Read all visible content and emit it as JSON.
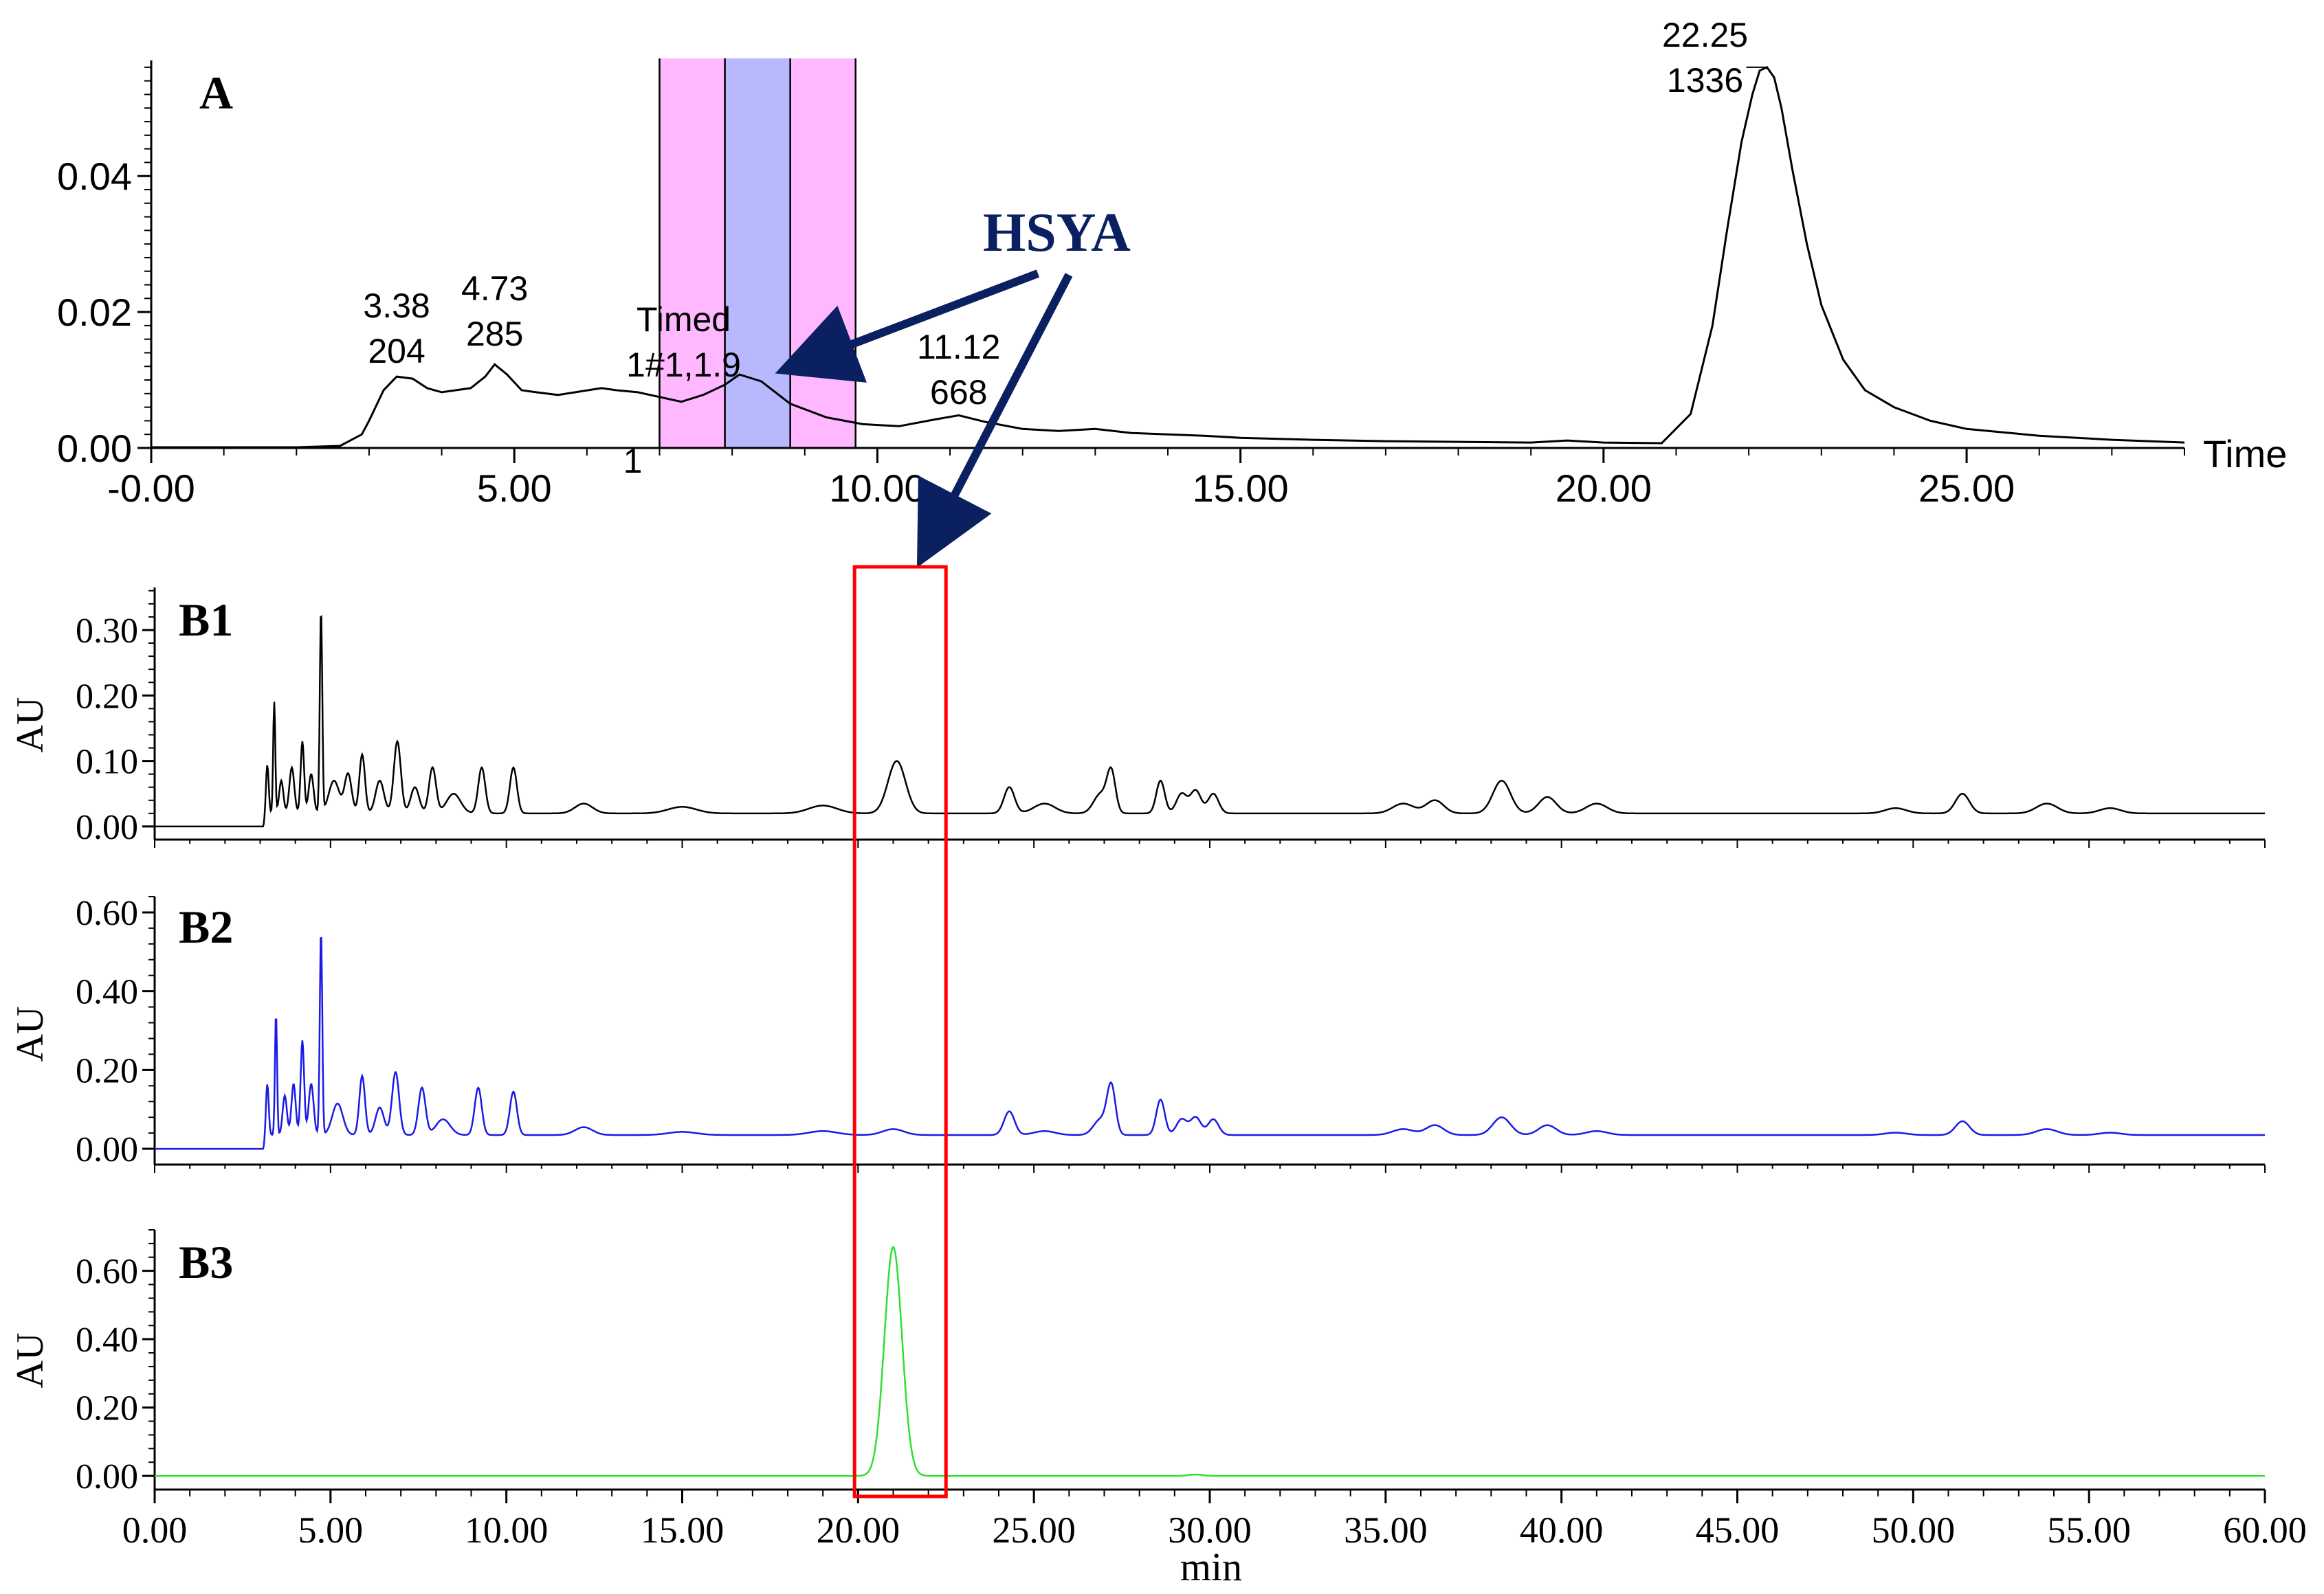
{
  "chart_data": [
    {
      "id": "A",
      "type": "line",
      "panel_label": "A",
      "xlabel": "Time",
      "x_ticks": [
        "-0.00",
        "5.00",
        "10.00",
        "15.00",
        "20.00",
        "25.00"
      ],
      "x_tick_values": [
        0,
        5,
        10,
        15,
        20,
        25
      ],
      "xlim": [
        0,
        28
      ],
      "y_ticks": [
        "0.00",
        "0.02",
        "0.04"
      ],
      "y_tick_values": [
        0,
        0.02,
        0.04
      ],
      "ylim": [
        0,
        0.057
      ],
      "grid": false,
      "shaded_regions": [
        {
          "x0": 7.0,
          "x1": 7.9,
          "color": "#ffb8ff"
        },
        {
          "x0": 7.9,
          "x1": 8.8,
          "color": "#b8b8ff"
        },
        {
          "x0": 8.8,
          "x1": 9.7,
          "color": "#ffb8ff"
        }
      ],
      "series": [
        {
          "color": "#000000",
          "x": [
            0,
            1,
            2,
            2.6,
            2.9,
            3.0,
            3.2,
            3.38,
            3.6,
            3.8,
            4.0,
            4.2,
            4.4,
            4.6,
            4.73,
            4.9,
            5.1,
            5.3,
            5.6,
            5.9,
            6.2,
            6.4,
            6.7,
            7.0,
            7.3,
            7.6,
            7.9,
            8.1,
            8.4,
            8.8,
            9.3,
            9.8,
            10.3,
            10.8,
            11.12,
            11.5,
            12.0,
            12.5,
            13.0,
            13.5,
            14.0,
            14.5,
            15.0,
            16.0,
            17.0,
            18.0,
            19.0,
            19.5,
            20.0,
            20.8,
            21.2,
            21.5,
            21.7,
            21.9,
            22.05,
            22.15,
            22.25,
            22.35,
            22.45,
            22.6,
            22.8,
            23.0,
            23.3,
            23.6,
            24.0,
            24.5,
            25.0,
            26.0,
            27.0,
            28.0
          ],
          "y": [
            0.0001,
            0.0001,
            0.0001,
            0.0003,
            0.002,
            0.004,
            0.0085,
            0.0105,
            0.0102,
            0.0088,
            0.0082,
            0.0085,
            0.0088,
            0.0105,
            0.0123,
            0.0108,
            0.0085,
            0.0082,
            0.0078,
            0.0083,
            0.0088,
            0.0085,
            0.0082,
            0.0075,
            0.0068,
            0.0078,
            0.0093,
            0.0108,
            0.0098,
            0.0065,
            0.0045,
            0.0035,
            0.0032,
            0.0042,
            0.0048,
            0.0038,
            0.0028,
            0.0025,
            0.0028,
            0.0022,
            0.002,
            0.0018,
            0.0015,
            0.0012,
            0.001,
            0.0009,
            0.0008,
            0.0011,
            0.0008,
            0.0007,
            0.005,
            0.018,
            0.032,
            0.045,
            0.052,
            0.0555,
            0.056,
            0.0545,
            0.05,
            0.041,
            0.03,
            0.021,
            0.013,
            0.0085,
            0.006,
            0.004,
            0.0028,
            0.0018,
            0.0012,
            0.0008
          ]
        }
      ],
      "annotations": [
        {
          "lines": [
            "3.38",
            "204"
          ],
          "x": 3.38
        },
        {
          "lines": [
            "4.73",
            "285"
          ],
          "x": 4.73
        },
        {
          "lines": [
            "Timed",
            "1#1,1.9",
            "1"
          ],
          "x": 7.9
        },
        {
          "lines": [
            "11.12",
            "668"
          ],
          "x": 11.12
        },
        {
          "lines": [
            "22.25",
            "1336"
          ],
          "x": 22.25
        }
      ],
      "callout": {
        "text": "HSYA",
        "color": "#0a2060"
      }
    },
    {
      "id": "B1",
      "type": "line",
      "panel_label": "B1",
      "ylabel": "AU",
      "y_ticks": [
        "0.00",
        "0.10",
        "0.20",
        "0.30"
      ],
      "y_tick_values": [
        0,
        0.1,
        0.2,
        0.3
      ],
      "ylim": [
        -0.02,
        0.365
      ],
      "xlim": [
        0,
        60
      ],
      "grid": false,
      "baseline": 0.02,
      "start": 3.1,
      "series": [
        {
          "color": "#000000",
          "peaks": [
            [
              3.2,
              0.08,
              0.04
            ],
            [
              3.4,
              0.17,
              0.03
            ],
            [
              3.6,
              0.05,
              0.06
            ],
            [
              3.9,
              0.07,
              0.07
            ],
            [
              4.2,
              0.11,
              0.05
            ],
            [
              4.45,
              0.06,
              0.07
            ],
            [
              4.73,
              0.31,
              0.035
            ],
            [
              5.1,
              0.05,
              0.15
            ],
            [
              5.5,
              0.06,
              0.1
            ],
            [
              5.9,
              0.09,
              0.08
            ],
            [
              6.4,
              0.05,
              0.12
            ],
            [
              6.9,
              0.11,
              0.1
            ],
            [
              7.4,
              0.04,
              0.12
            ],
            [
              7.9,
              0.07,
              0.1
            ],
            [
              8.5,
              0.03,
              0.2
            ],
            [
              9.3,
              0.07,
              0.1
            ],
            [
              10.2,
              0.07,
              0.1
            ],
            [
              12.2,
              0.015,
              0.25
            ],
            [
              15.0,
              0.01,
              0.4
            ],
            [
              19.0,
              0.012,
              0.4
            ],
            [
              21.1,
              0.08,
              0.25
            ],
            [
              24.3,
              0.04,
              0.15
            ],
            [
              25.3,
              0.015,
              0.3
            ],
            [
              26.9,
              0.03,
              0.2
            ],
            [
              27.2,
              0.06,
              0.12
            ],
            [
              28.6,
              0.05,
              0.12
            ],
            [
              29.2,
              0.03,
              0.15
            ],
            [
              29.6,
              0.035,
              0.15
            ],
            [
              30.1,
              0.03,
              0.15
            ],
            [
              35.5,
              0.015,
              0.3
            ],
            [
              36.4,
              0.02,
              0.25
            ],
            [
              38.3,
              0.05,
              0.25
            ],
            [
              39.6,
              0.025,
              0.25
            ],
            [
              41.0,
              0.015,
              0.3
            ],
            [
              49.5,
              0.008,
              0.3
            ],
            [
              51.4,
              0.03,
              0.2
            ],
            [
              53.8,
              0.015,
              0.3
            ],
            [
              55.6,
              0.008,
              0.3
            ]
          ]
        }
      ]
    },
    {
      "id": "B2",
      "type": "line",
      "panel_label": "B2",
      "ylabel": "AU",
      "y_ticks": [
        "0.00",
        "0.20",
        "0.40",
        "0.60"
      ],
      "y_tick_values": [
        0,
        0.2,
        0.4,
        0.6
      ],
      "ylim": [
        -0.04,
        0.64
      ],
      "xlim": [
        0,
        60
      ],
      "grid": false,
      "baseline": 0.035,
      "start": 3.1,
      "series": [
        {
          "color": "#1a1ae6",
          "peaks": [
            [
              3.2,
              0.14,
              0.04
            ],
            [
              3.45,
              0.31,
              0.03
            ],
            [
              3.7,
              0.1,
              0.06
            ],
            [
              3.95,
              0.13,
              0.06
            ],
            [
              4.2,
              0.24,
              0.05
            ],
            [
              4.45,
              0.13,
              0.07
            ],
            [
              4.73,
              0.52,
              0.035
            ],
            [
              5.2,
              0.08,
              0.15
            ],
            [
              5.9,
              0.15,
              0.08
            ],
            [
              6.4,
              0.07,
              0.12
            ],
            [
              6.85,
              0.16,
              0.1
            ],
            [
              7.6,
              0.12,
              0.1
            ],
            [
              8.2,
              0.04,
              0.2
            ],
            [
              9.2,
              0.12,
              0.1
            ],
            [
              10.2,
              0.11,
              0.1
            ],
            [
              12.2,
              0.02,
              0.25
            ],
            [
              15.0,
              0.008,
              0.4
            ],
            [
              19.0,
              0.01,
              0.4
            ],
            [
              21.0,
              0.015,
              0.3
            ],
            [
              24.3,
              0.06,
              0.15
            ],
            [
              25.3,
              0.01,
              0.3
            ],
            [
              26.9,
              0.04,
              0.2
            ],
            [
              27.2,
              0.12,
              0.12
            ],
            [
              28.6,
              0.09,
              0.12
            ],
            [
              29.2,
              0.04,
              0.15
            ],
            [
              29.6,
              0.045,
              0.15
            ],
            [
              30.1,
              0.04,
              0.15
            ],
            [
              35.5,
              0.015,
              0.3
            ],
            [
              36.4,
              0.025,
              0.25
            ],
            [
              38.3,
              0.045,
              0.25
            ],
            [
              39.6,
              0.025,
              0.25
            ],
            [
              41.0,
              0.01,
              0.3
            ],
            [
              49.5,
              0.006,
              0.3
            ],
            [
              51.4,
              0.035,
              0.2
            ],
            [
              53.8,
              0.015,
              0.3
            ],
            [
              55.6,
              0.006,
              0.3
            ]
          ]
        }
      ]
    },
    {
      "id": "B3",
      "type": "line",
      "panel_label": "B3",
      "ylabel": "AU",
      "xlabel": "min",
      "x_ticks": [
        "0.00",
        "5.00",
        "10.00",
        "15.00",
        "20.00",
        "25.00",
        "30.00",
        "35.00",
        "40.00",
        "45.00",
        "50.00",
        "55.00",
        "60.00"
      ],
      "x_tick_values": [
        0,
        5,
        10,
        15,
        20,
        25,
        30,
        35,
        40,
        45,
        50,
        55,
        60
      ],
      "y_ticks": [
        "0.00",
        "0.20",
        "0.40",
        "0.60"
      ],
      "y_tick_values": [
        0,
        0.2,
        0.4,
        0.6
      ],
      "ylim": [
        -0.04,
        0.72
      ],
      "xlim": [
        0,
        60
      ],
      "grid": false,
      "baseline": 0.0,
      "start": 0,
      "series": [
        {
          "color": "#33dd33",
          "peaks": [
            [
              21.0,
              0.67,
              0.25
            ],
            [
              29.6,
              0.004,
              0.2
            ]
          ]
        }
      ]
    }
  ],
  "highlight_box": {
    "x0": 19.9,
    "x1": 22.5,
    "color": "#ff0000"
  }
}
